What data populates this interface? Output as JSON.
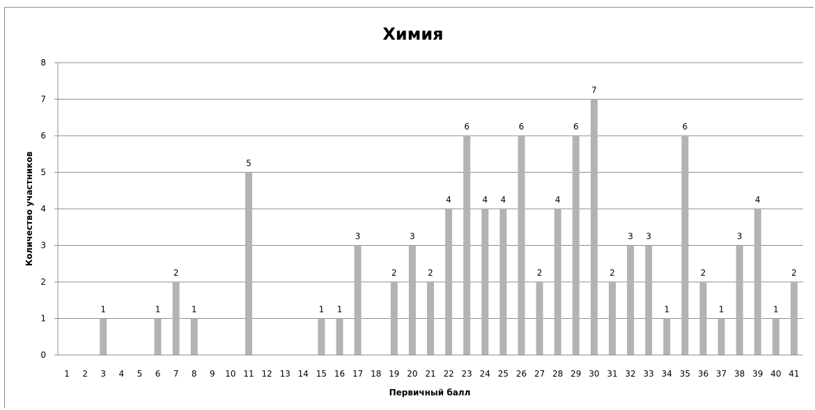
{
  "chart_data": {
    "type": "bar",
    "title": "Химия",
    "xlabel": "Первичный балл",
    "ylabel": "Количество  участников",
    "ylim": [
      0,
      8
    ],
    "yticks": [
      "0",
      "1",
      "2",
      "3",
      "4",
      "5",
      "6",
      "7",
      "8"
    ],
    "grid": true,
    "legend": "none",
    "bar_color": "#b3b3b3",
    "categories": [
      "1",
      "2",
      "3",
      "4",
      "5",
      "6",
      "7",
      "8",
      "9",
      "10",
      "11",
      "12",
      "13",
      "14",
      "15",
      "16",
      "17",
      "18",
      "19",
      "20",
      "21",
      "22",
      "23",
      "24",
      "25",
      "26",
      "27",
      "28",
      "29",
      "30",
      "31",
      "32",
      "33",
      "34",
      "35",
      "36",
      "37",
      "38",
      "39",
      "40",
      "41"
    ],
    "values": [
      0,
      0,
      1,
      0,
      0,
      1,
      2,
      1,
      0,
      0,
      5,
      0,
      0,
      0,
      1,
      1,
      3,
      0,
      2,
      3,
      2,
      4,
      6,
      4,
      4,
      6,
      2,
      4,
      6,
      7,
      2,
      3,
      3,
      1,
      6,
      2,
      1,
      3,
      4,
      1,
      2
    ]
  }
}
